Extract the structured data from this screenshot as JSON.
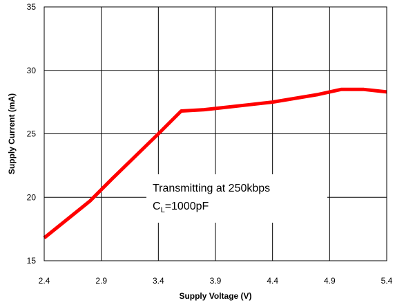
{
  "chart_data": {
    "type": "line",
    "xlabel": "Supply Voltage (V)",
    "ylabel": "Supply Current (mA)",
    "xlim": [
      2.4,
      5.4
    ],
    "ylim": [
      15,
      35
    ],
    "xticks": [
      "2.4",
      "2.9",
      "3.4",
      "3.9",
      "4.4",
      "4.9",
      "5.4"
    ],
    "yticks": [
      "15",
      "20",
      "25",
      "30",
      "35"
    ],
    "grid": true,
    "legend": "none",
    "series": [
      {
        "color": "#ff0000",
        "x": [
          2.4,
          2.8,
          3.0,
          3.4,
          3.6,
          3.8,
          4.0,
          4.2,
          4.4,
          4.6,
          4.8,
          5.0,
          5.2,
          5.4
        ],
        "y": [
          16.8,
          19.7,
          21.5,
          25.0,
          26.8,
          26.9,
          27.1,
          27.3,
          27.5,
          27.8,
          28.1,
          28.5,
          28.5,
          28.3
        ]
      }
    ],
    "annotation": {
      "line1": "Transmitting at 250kbps",
      "line2_main": "C",
      "line2_sub": "L",
      "line2_rest": "=1000pF"
    }
  }
}
